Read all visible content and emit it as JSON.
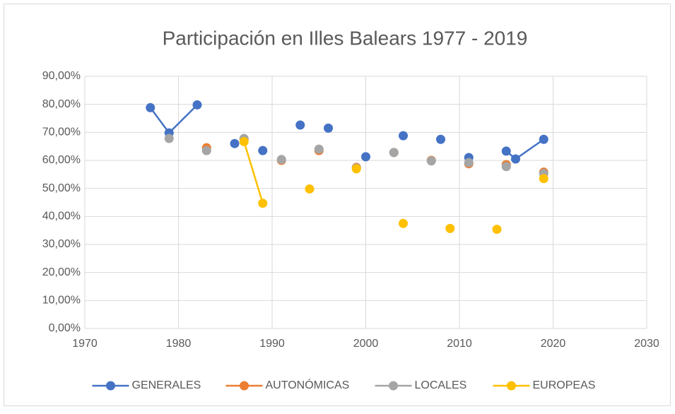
{
  "chart_data": {
    "type": "scatter",
    "title": "Participación en Illes Balears 1977 - 2019",
    "x": [
      1977,
      1979,
      1982,
      1983,
      1986,
      1987,
      1989,
      1991,
      1993,
      1994,
      1995,
      1996,
      1999,
      2000,
      2003,
      2004,
      2007,
      2008,
      2009,
      2011,
      2014,
      2015,
      2016,
      2019
    ],
    "series": [
      {
        "name": "GENERALES",
        "color": "#4472c4",
        "values": [
          78.8,
          69.8,
          79.8,
          null,
          66.0,
          null,
          63.5,
          null,
          72.6,
          null,
          null,
          71.5,
          null,
          61.3,
          null,
          68.8,
          null,
          67.5,
          null,
          61.0,
          null,
          63.3,
          60.5,
          67.5
        ]
      },
      {
        "name": "AUTONÓMICAS",
        "color": "#ed7d31",
        "values": [
          null,
          null,
          null,
          64.5,
          null,
          67.5,
          null,
          60.0,
          null,
          null,
          63.5,
          null,
          57.5,
          null,
          62.8,
          null,
          60.0,
          null,
          null,
          58.8,
          null,
          58.5,
          null,
          55.8
        ]
      },
      {
        "name": "LOCALES",
        "color": "#a5a5a5",
        "values": [
          null,
          67.8,
          null,
          63.5,
          null,
          67.8,
          null,
          60.3,
          null,
          null,
          64.0,
          null,
          57.3,
          null,
          62.8,
          null,
          59.8,
          null,
          null,
          59.2,
          null,
          57.8,
          null,
          55.3
        ]
      },
      {
        "name": "EUROPEAS",
        "color": "#ffc000",
        "values": [
          null,
          null,
          null,
          null,
          null,
          66.7,
          44.7,
          null,
          null,
          49.8,
          null,
          null,
          57.0,
          null,
          null,
          37.5,
          null,
          null,
          35.7,
          null,
          35.4,
          null,
          null,
          53.5
        ]
      }
    ],
    "xlim": [
      1970,
      2030
    ],
    "xticks": [
      1970,
      1980,
      1990,
      2000,
      2010,
      2020,
      2030
    ],
    "ylim": [
      0,
      90
    ],
    "yticks": [
      {
        "value": 0,
        "label": "0,00%"
      },
      {
        "value": 10,
        "label": "10,00%"
      },
      {
        "value": 20,
        "label": "20,00%"
      },
      {
        "value": 30,
        "label": "30,00%"
      },
      {
        "value": 40,
        "label": "40,00%"
      },
      {
        "value": 50,
        "label": "50,00%"
      },
      {
        "value": 60,
        "label": "60,00%"
      },
      {
        "value": 70,
        "label": "70,00%"
      },
      {
        "value": 80,
        "label": "80,00%"
      },
      {
        "value": 90,
        "label": "90,00%"
      }
    ],
    "grid": true,
    "legend": "bottom"
  }
}
